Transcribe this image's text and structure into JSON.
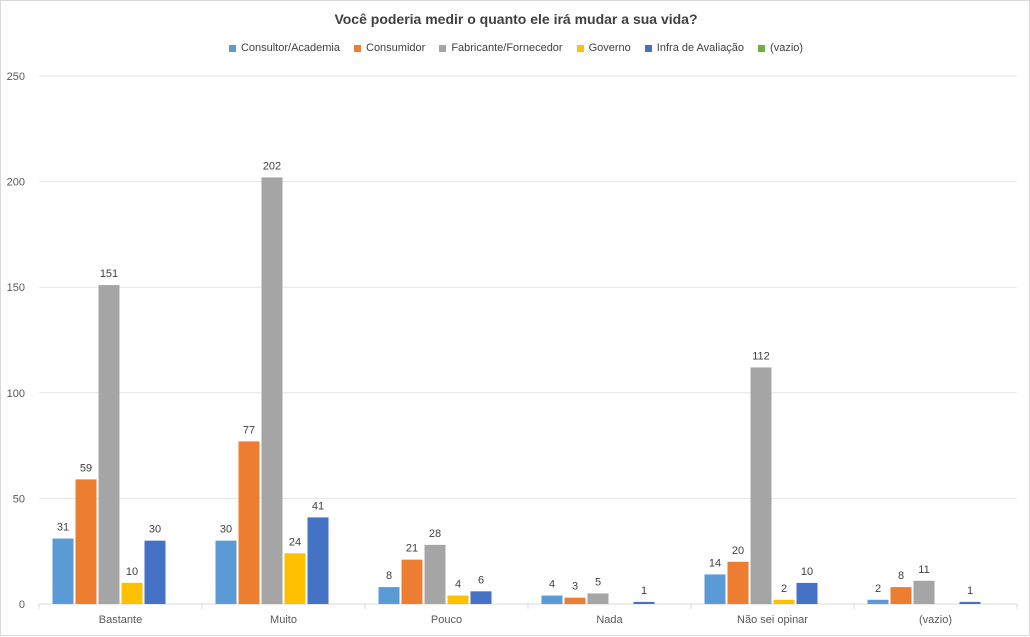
{
  "chart_data": {
    "type": "bar",
    "title": "Você poderia medir o quanto ele irá mudar a sua vida?",
    "xlabel": "",
    "ylabel": "",
    "ylim": [
      0,
      250
    ],
    "yticks": [
      0,
      50,
      100,
      150,
      200,
      250
    ],
    "grid": true,
    "legend_position": "top",
    "categories": [
      "Bastante",
      "Muito",
      "Pouco",
      "Nada",
      "Não sei opinar",
      "(vazio)"
    ],
    "series": [
      {
        "name": "Consultor/Academia",
        "color": "#5b9bd5",
        "values": [
          31,
          30,
          8,
          4,
          14,
          2
        ]
      },
      {
        "name": "Consumidor",
        "color": "#ed7d31",
        "values": [
          59,
          77,
          21,
          3,
          20,
          8
        ]
      },
      {
        "name": "Fabricante/Fornecedor",
        "color": "#a5a5a5",
        "values": [
          151,
          202,
          28,
          5,
          112,
          11
        ]
      },
      {
        "name": "Governo",
        "color": "#ffc000",
        "values": [
          10,
          24,
          4,
          null,
          2,
          null
        ]
      },
      {
        "name": "Infra de Avaliação",
        "color": "#4472c4",
        "values": [
          30,
          41,
          6,
          1,
          10,
          1
        ]
      },
      {
        "name": "(vazio)",
        "color": "#70ad47",
        "values": [
          null,
          null,
          null,
          null,
          null,
          null
        ]
      }
    ]
  }
}
